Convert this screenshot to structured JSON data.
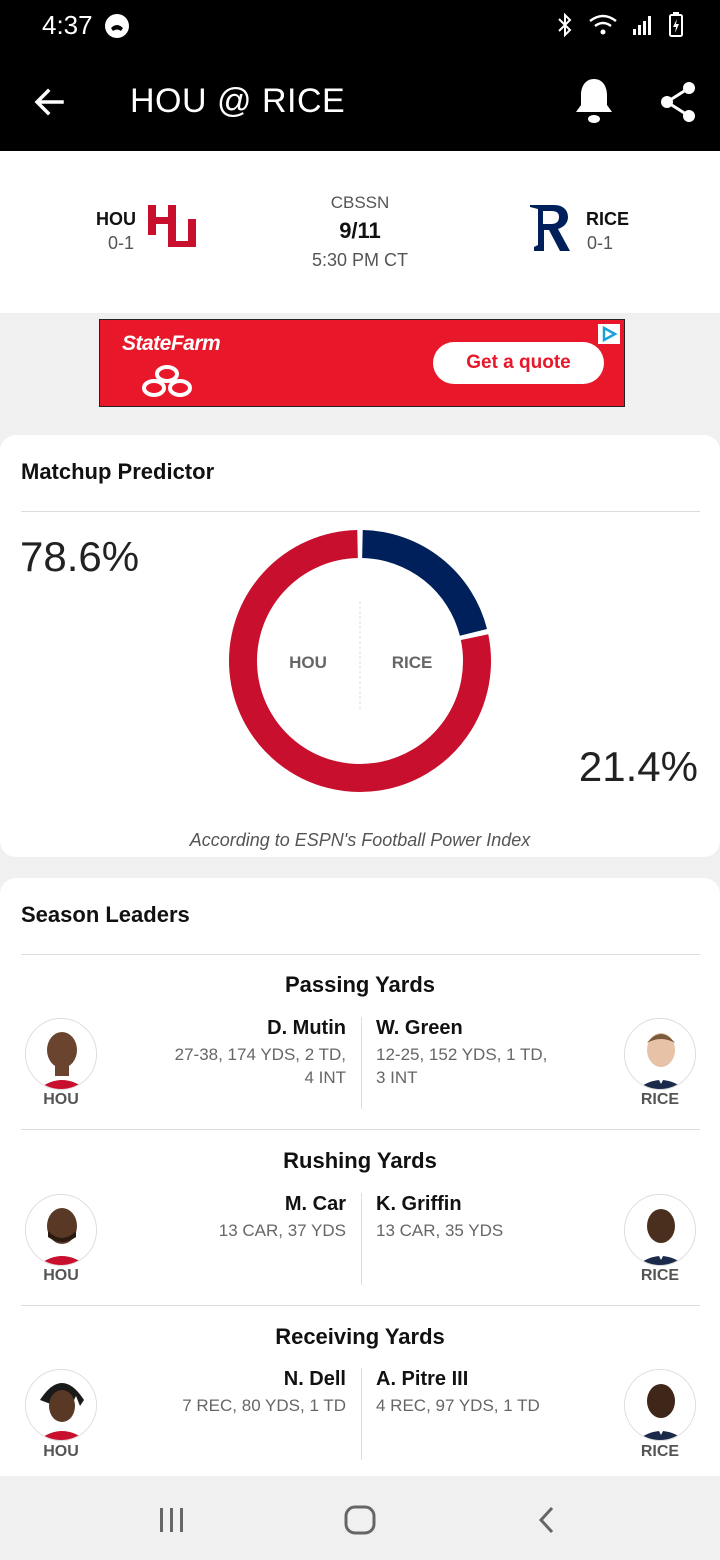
{
  "status_bar": {
    "time": "4:37"
  },
  "app_bar": {
    "title": "HOU @ RICE"
  },
  "game": {
    "away": {
      "abbr": "HOU",
      "record": "0-1",
      "color": "#c8102e"
    },
    "home": {
      "abbr": "RICE",
      "record": "0-1",
      "color": "#00205b"
    },
    "network": "CBSSN",
    "date": "9/11",
    "time": "5:30 PM CT"
  },
  "ad": {
    "brand": "StateFarm",
    "cta": "Get a quote"
  },
  "matchup": {
    "title": "Matchup Predictor",
    "away_pct": "78.6%",
    "home_pct": "21.4%",
    "away_label": "HOU",
    "home_label": "RICE",
    "away_value": 78.6,
    "home_value": 21.4,
    "note": "According to ESPN's Football Power Index"
  },
  "leaders": {
    "title": "Season Leaders",
    "categories": [
      {
        "title": "Passing Yards",
        "away": {
          "name": "D. Mutin",
          "stat1": "27-38, 174 YDS, 2 TD,",
          "stat2": "4 INT",
          "team": "HOU"
        },
        "home": {
          "name": "W. Green",
          "stat1": "12-25, 152 YDS, 1 TD,",
          "stat2": "3 INT",
          "team": "RICE"
        }
      },
      {
        "title": "Rushing Yards",
        "away": {
          "name": "M. Car",
          "stat1": "13 CAR, 37 YDS",
          "stat2": "",
          "team": "HOU"
        },
        "home": {
          "name": "K. Griffin",
          "stat1": "13 CAR, 35 YDS",
          "stat2": "",
          "team": "RICE"
        }
      },
      {
        "title": "Receiving Yards",
        "away": {
          "name": "N. Dell",
          "stat1": "7 REC, 80 YDS, 1 TD",
          "stat2": "",
          "team": "HOU"
        },
        "home": {
          "name": "A. Pitre III",
          "stat1": "4 REC, 97 YDS, 1 TD",
          "stat2": "",
          "team": "RICE"
        }
      }
    ]
  }
}
